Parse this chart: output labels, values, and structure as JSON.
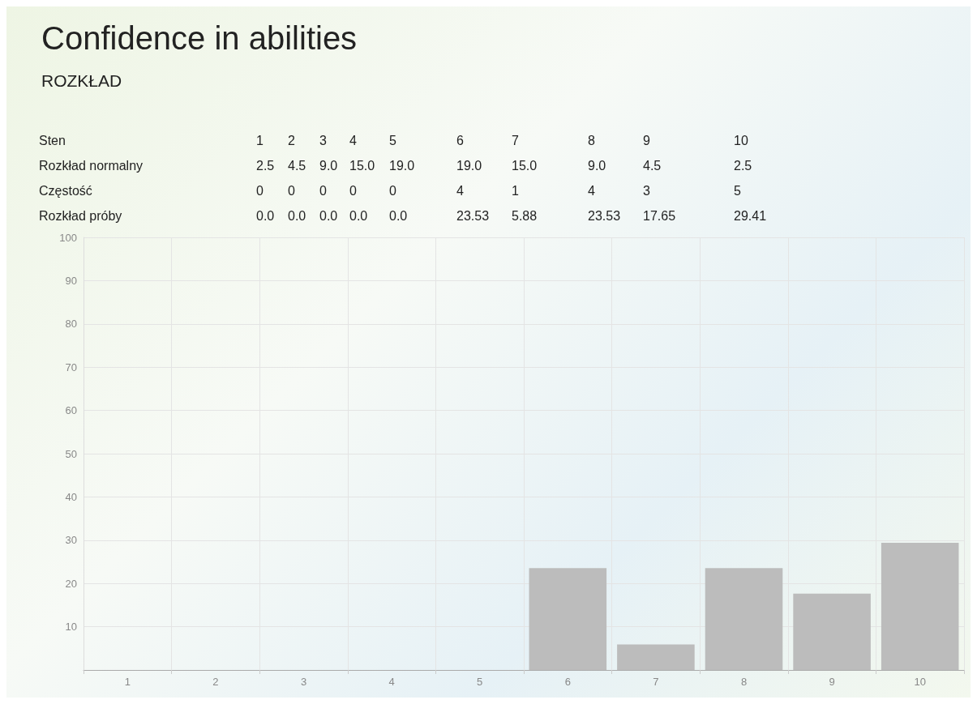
{
  "chart_data": {
    "type": "bar",
    "title": "Confidence in abilities",
    "subtitle": "ROZKŁAD",
    "categories": [
      "1",
      "2",
      "3",
      "4",
      "5",
      "6",
      "7",
      "8",
      "9",
      "10"
    ],
    "series": [
      {
        "color": "#bcbcbc",
        "values": [
          0,
          0,
          0,
          0,
          0,
          23.53,
          5.88,
          23.53,
          17.65,
          29.41
        ]
      }
    ],
    "annotations": [
      "Sten",
      "1",
      "2",
      "3",
      "4",
      "5",
      "6",
      "7",
      "8",
      "9",
      "10",
      "Rozkład normalny",
      "2.5",
      "4.5",
      "9.0",
      "15.0",
      "19.0",
      "19.0",
      "15.0",
      "9.0",
      "4.5",
      "2.5",
      "Częstość",
      "0",
      "0",
      "0",
      "0",
      "0",
      "4",
      "1",
      "4",
      "3",
      "5",
      "Rozkład próby",
      "0.0",
      "0.0",
      "0.0",
      "0.0",
      "0.0",
      "23.53",
      "5.88",
      "23.53",
      "17.65",
      "29.41"
    ],
    "ylim": [
      0,
      100
    ],
    "yticks": [
      {
        "value": 0,
        "label": null
      },
      10,
      20,
      30,
      40,
      50,
      60,
      70,
      80,
      90,
      100
    ],
    "grid": true
  }
}
